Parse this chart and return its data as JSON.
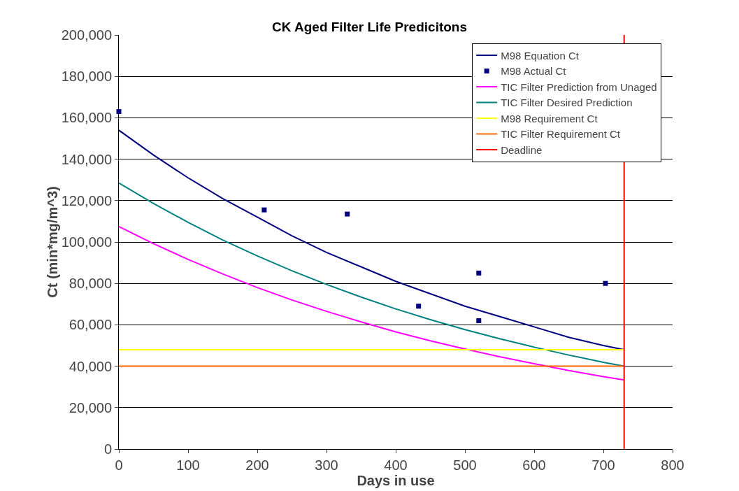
{
  "chart_data": {
    "type": "line",
    "title": "CK Aged Filter Life Predicitons",
    "xlabel": "Days in use",
    "ylabel": "Ct (min*mg/m^3)",
    "xlim": [
      0,
      800
    ],
    "xticks": [
      0,
      100,
      200,
      300,
      400,
      500,
      600,
      700,
      800
    ],
    "ylim": [
      0,
      200000
    ],
    "yticks": [
      {
        "value": 0,
        "label": "0"
      },
      {
        "value": 20000,
        "label": "20,000"
      },
      {
        "value": 40000,
        "label": "40,000"
      },
      {
        "value": 60000,
        "label": "60,000"
      },
      {
        "value": 80000,
        "label": "80,000"
      },
      {
        "value": 100000,
        "label": "100,000"
      },
      {
        "value": 120000,
        "label": "120,000"
      },
      {
        "value": 140000,
        "label": "140,000"
      },
      {
        "value": 160000,
        "label": "160,000"
      },
      {
        "value": 180000,
        "label": "180,000"
      },
      {
        "value": 200000,
        "label": "200,000"
      }
    ],
    "grid": "y",
    "legend": "top right",
    "line_style": "solid",
    "series": [
      {
        "name": "M98 Equation Ct",
        "color": "#000080",
        "marker": "none",
        "x": [
          0,
          50,
          100,
          150,
          200,
          250,
          300,
          350,
          400,
          450,
          500,
          550,
          600,
          650,
          700,
          730
        ],
        "values": [
          154000,
          142000,
          131000,
          121000,
          112000,
          103000,
          95000,
          88000,
          81000,
          75000,
          69000,
          64000,
          59000,
          54000,
          50000,
          48000
        ]
      },
      {
        "name": "M98 Actual Ct",
        "color": "#000080",
        "type": "scatter",
        "marker": "square",
        "x": [
          0,
          210,
          330,
          433,
          520,
          520,
          703
        ],
        "values": [
          163000,
          115500,
          113500,
          69000,
          85000,
          62000,
          80000
        ]
      },
      {
        "name": "TIC Filter Prediction from Unaged",
        "color": "#ff00ff",
        "marker": "none",
        "x": [
          0,
          50,
          100,
          150,
          200,
          250,
          300,
          350,
          400,
          450,
          500,
          550,
          600,
          650,
          700,
          730
        ],
        "values": [
          107500,
          99200,
          91600,
          84600,
          78000,
          72000,
          66500,
          61400,
          56600,
          52300,
          48300,
          44600,
          41200,
          37900,
          35000,
          33400
        ]
      },
      {
        "name": "TIC Filter Desired Prediction",
        "color": "#008080",
        "marker": "none",
        "x": [
          0,
          50,
          100,
          150,
          200,
          250,
          300,
          350,
          400,
          450,
          500,
          550,
          600,
          650,
          700,
          730
        ],
        "values": [
          128500,
          118600,
          109500,
          101000,
          93300,
          86100,
          79500,
          73400,
          67700,
          62500,
          57700,
          53300,
          49200,
          45400,
          41900,
          40000
        ]
      },
      {
        "name": "M98 Requirement Ct",
        "color": "#ffff00",
        "marker": "none",
        "x": [
          0,
          730
        ],
        "values": [
          48000,
          48000
        ]
      },
      {
        "name": "TIC Filter Requirement Ct",
        "color": "#ff6600",
        "marker": "none",
        "x": [
          0,
          730
        ],
        "values": [
          40000,
          40000
        ]
      },
      {
        "name": "Deadline",
        "color": "#ff0000",
        "marker": "none",
        "x": [
          730,
          730
        ],
        "values": [
          0,
          200000
        ]
      }
    ]
  }
}
